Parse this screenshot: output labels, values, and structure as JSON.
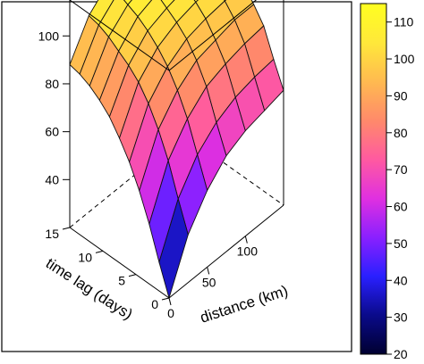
{
  "chart_data": {
    "type": "surface",
    "zlabel": "",
    "ylabel": "time lag (days)",
    "xlabel": "distance (km)",
    "distance_km": [
      0,
      25,
      50,
      75,
      100,
      125,
      150
    ],
    "time_lag_days": [
      0,
      1.5,
      3,
      4.5,
      6,
      7.5,
      9,
      10.5,
      12,
      13.5,
      15
    ],
    "z_ticks": [
      "40",
      "60",
      "80",
      "100"
    ],
    "lag_ticks": [
      "0",
      "5",
      "10",
      "15"
    ],
    "distance_ticks": [
      "0",
      "50",
      "100"
    ],
    "zlim": [
      20,
      115
    ],
    "values": [
      [
        20,
        40,
        52,
        60,
        64,
        66,
        68
      ],
      [
        32,
        52,
        64,
        71,
        75,
        77,
        78
      ],
      [
        45,
        65,
        76,
        83,
        86,
        88,
        89
      ],
      [
        56,
        75,
        85,
        91,
        93,
        95,
        95
      ],
      [
        65,
        83,
        92,
        97,
        99,
        100,
        100
      ],
      [
        72,
        89,
        97,
        101,
        103,
        104,
        104
      ],
      [
        78,
        93,
        101,
        104,
        106,
        107,
        107
      ],
      [
        82,
        96,
        104,
        107,
        108,
        109,
        109
      ],
      [
        85,
        99,
        106,
        109,
        110,
        111,
        111
      ],
      [
        87,
        101,
        108,
        110,
        111,
        112,
        112
      ],
      [
        88,
        102,
        109,
        111,
        112,
        113,
        113
      ]
    ],
    "colorbar": {
      "ticks": [
        "20",
        "30",
        "40",
        "50",
        "60",
        "70",
        "80",
        "90",
        "100",
        "110"
      ],
      "range": [
        20,
        115
      ],
      "stops": [
        "#000030",
        "#0a0a8a",
        "#2a20ff",
        "#8a20ff",
        "#e030e0",
        "#ff5aa0",
        "#ff8a6a",
        "#ffba50",
        "#ffe83a",
        "#ffff20"
      ]
    }
  }
}
